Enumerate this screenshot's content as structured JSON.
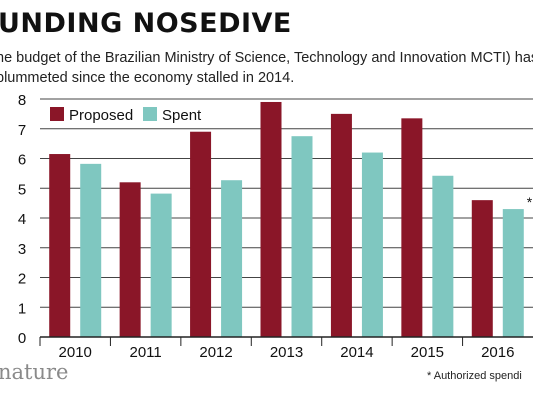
{
  "title": "UNDING NOSEDIVE",
  "subtitle": "he budget of the Brazilian Ministry of Science, Technology and Innovation MCTI) has plummeted since the economy stalled in 2014.",
  "brand": "nature",
  "footnote": "* Authorized spendi",
  "colors": {
    "proposed": "#8a1628",
    "spent": "#7fc7c0",
    "grid": "#444444"
  },
  "chart_data": {
    "type": "bar",
    "categories": [
      "2010",
      "2011",
      "2012",
      "2013",
      "2014",
      "2015",
      "2016"
    ],
    "series": [
      {
        "name": "Proposed",
        "values": [
          6.15,
          5.2,
          6.9,
          7.9,
          7.5,
          7.35,
          4.6
        ]
      },
      {
        "name": "Spent",
        "values": [
          5.82,
          4.82,
          5.27,
          6.75,
          6.2,
          5.42,
          4.3
        ]
      }
    ],
    "yticks": [
      0,
      1,
      2,
      3,
      4,
      5,
      6,
      7,
      8
    ],
    "ylim": [
      0,
      8
    ],
    "grid": true,
    "legend": "top-left",
    "annotations": [
      {
        "category": "2016",
        "series": "Spent",
        "text": "*"
      }
    ]
  }
}
